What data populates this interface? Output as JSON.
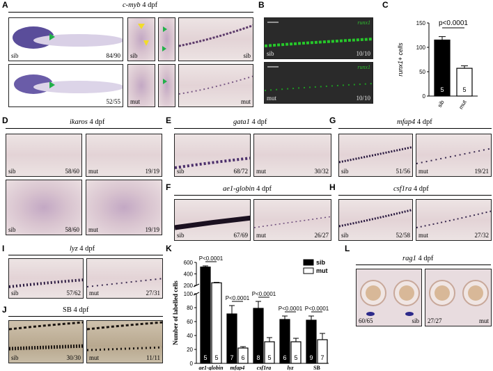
{
  "panels": {
    "A": {
      "letter": "A",
      "gene": "c-myb",
      "stage": "4 dpf",
      "tags": {
        "r1_label": "sib",
        "r1_count": "84/90",
        "r1_zoom": "sib",
        "r1_tail": "sib",
        "r2_count": "52/55",
        "r2_zoom": "mut",
        "r2_tail": "mut"
      }
    },
    "B": {
      "letter": "B",
      "marker": "runx1",
      "tags": {
        "top_label": "sib",
        "top_count": "10/10",
        "bot_label": "mut",
        "bot_count": "10/10"
      }
    },
    "C": {
      "letter": "C"
    },
    "D": {
      "letter": "D",
      "gene": "ikaros",
      "stage": "4 dpf",
      "tags": {
        "a": "sib",
        "a_n": "58/60",
        "b": "mut",
        "b_n": "19/19",
        "c": "sib",
        "c_n": "58/60",
        "d": "mut",
        "d_n": "19/19"
      }
    },
    "E": {
      "letter": "E",
      "gene": "gata1",
      "stage": "4 dpf",
      "tags": {
        "a": "sib",
        "a_n": "68/72",
        "b": "mut",
        "b_n": "30/32"
      }
    },
    "F": {
      "letter": "F",
      "gene": "ae1-globin",
      "stage": "4 dpf",
      "tags": {
        "a": "sib",
        "a_n": "67/69",
        "b": "mut",
        "b_n": "26/27"
      }
    },
    "G": {
      "letter": "G",
      "gene": "mfap4",
      "stage": "4 dpf",
      "tags": {
        "a": "sib",
        "a_n": "51/56",
        "b": "mut",
        "b_n": "19/21"
      }
    },
    "H": {
      "letter": "H",
      "gene": "csf1ra",
      "stage": "4 dpf",
      "tags": {
        "a": "sib",
        "a_n": "52/58",
        "b": "mut",
        "b_n": "27/32"
      }
    },
    "I": {
      "letter": "I",
      "gene": "lyz",
      "stage": "4 dpf",
      "tags": {
        "a": "sib",
        "a_n": "57/62",
        "b": "mut",
        "b_n": "27/31"
      }
    },
    "J": {
      "letter": "J",
      "gene": "SB",
      "stage": "4 dpf",
      "tags": {
        "a": "sib",
        "a_n": "30/30",
        "b": "mut",
        "b_n": "11/11"
      }
    },
    "K": {
      "letter": "K"
    },
    "L": {
      "letter": "L",
      "gene": "rag1",
      "stage": "4 dpf",
      "tags": {
        "a_n": "60/65",
        "a": "sib",
        "b_n": "27/27",
        "b": "mut"
      }
    }
  },
  "chart_data": [
    {
      "type": "bar",
      "panel": "C",
      "categories": [
        "sib",
        "mut"
      ],
      "values": [
        115,
        57
      ],
      "errors": [
        7,
        5
      ],
      "n": [
        "5",
        "5"
      ],
      "ylabel": "runx1+ cells",
      "ylim": [
        0,
        150
      ],
      "yticks": [
        0,
        50,
        100,
        150
      ],
      "pvalue": "p<0.0001",
      "colors": [
        "#000000",
        "#ffffff"
      ]
    },
    {
      "type": "bar",
      "panel": "K",
      "categories": [
        "ae1-globin",
        "mfap4",
        "csf1ra",
        "lyz",
        "SB"
      ],
      "series": [
        {
          "name": "sib",
          "values": [
            520,
            71,
            79,
            63,
            62
          ],
          "errors": [
            20,
            12,
            10,
            5,
            6
          ],
          "n": [
            "5",
            "7",
            "8",
            "6",
            "9"
          ],
          "color": "#000000"
        },
        {
          "name": "mut",
          "values": [
            245,
            22,
            31,
            31,
            34
          ],
          "errors": [
            8,
            2,
            6,
            5,
            9
          ],
          "n": [
            "5",
            "6",
            "5",
            "5",
            "7"
          ],
          "color": "#ffffff"
        }
      ],
      "pvalues": [
        "P<0.0001",
        "P<0.0001",
        "P<0.0001",
        "P<0.0001",
        "P<0.0001"
      ],
      "ylabel": "Number of labelled cells",
      "axis_break": [
        100,
        200
      ],
      "yticks_lower": [
        0,
        20,
        40,
        60,
        80,
        100
      ],
      "yticks_upper": [
        200,
        400,
        600
      ],
      "legend": "top-right"
    }
  ]
}
